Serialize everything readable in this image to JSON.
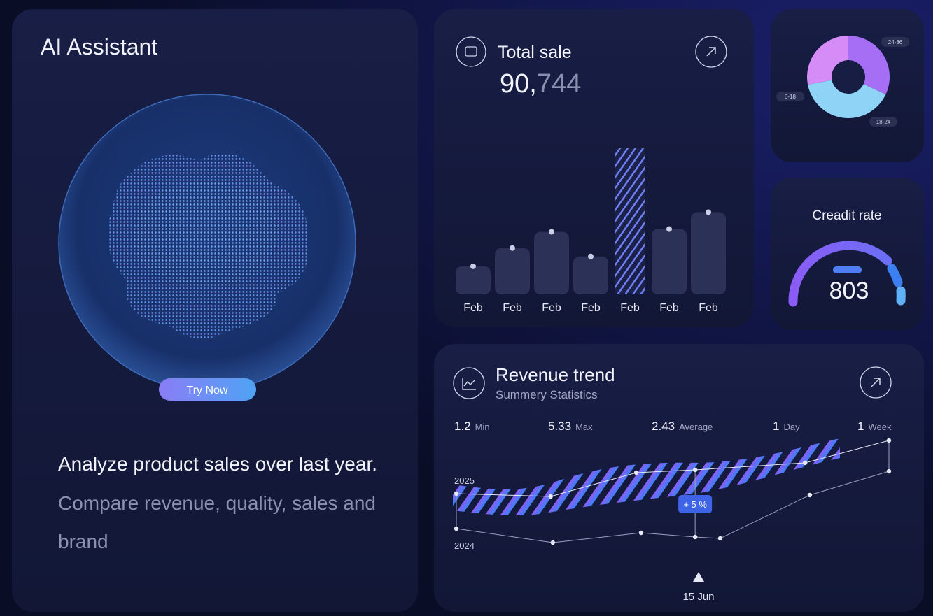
{
  "ai_card": {
    "title": "AI Assistant",
    "button": "Try Now",
    "text_highlight": "Analyze product sales over last year.",
    "text_muted": "Compare revenue, quality, sales and brand"
  },
  "total_sale": {
    "title": "Total sale",
    "value_main": "90,",
    "value_muted": "744"
  },
  "credit": {
    "title": "Creadit rate",
    "value": "803"
  },
  "revenue": {
    "title": "Revenue trend",
    "subtitle": "Summery Statistics",
    "stats": [
      {
        "value": "1.2",
        "label": "Min"
      },
      {
        "value": "5.33",
        "label": "Max"
      },
      {
        "value": "2.43",
        "label": "Average"
      },
      {
        "value": "1",
        "label": "Day"
      },
      {
        "value": "1",
        "label": "Week"
      }
    ],
    "slider_label": "15 Jun"
  },
  "chart_data": [
    {
      "type": "bar",
      "categories": [
        "Feb",
        "Feb",
        "Feb",
        "Feb",
        "Feb",
        "Feb",
        "Feb"
      ],
      "values": [
        40,
        66,
        89,
        54,
        208,
        93,
        117
      ],
      "ylim": [
        0,
        220
      ],
      "color": "#2b3157",
      "highlight": 4
    },
    {
      "type": "pie",
      "categories": [
        "24-36",
        "18-24",
        "0-18"
      ],
      "values": [
        32,
        40,
        28
      ],
      "colors": [
        "#a56ef5",
        "#8fd3f7",
        "#d58cf7"
      ]
    },
    {
      "type": "line",
      "xlim": [
        0,
        100
      ],
      "ylim": [
        0,
        10
      ],
      "annotation": "+ 5 %",
      "series": [
        {
          "name": "2025",
          "color": "#e6e8f5",
          "x": [
            0,
            21.8,
            41.6,
            55.2,
            80.6,
            100
          ],
          "values": [
            4.7,
            4.5,
            6.2,
            6.4,
            6.9,
            8.5
          ]
        },
        {
          "name": "2024",
          "color": "#9aa0c0",
          "x": [
            0,
            22.3,
            42.7,
            55.2,
            61.0,
            81.7,
            100
          ],
          "values": [
            2.2,
            1.2,
            1.9,
            1.6,
            1.5,
            4.6,
            6.3
          ]
        }
      ]
    }
  ]
}
